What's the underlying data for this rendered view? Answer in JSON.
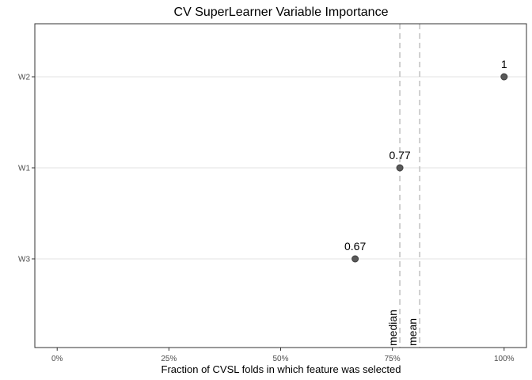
{
  "chart_data": {
    "type": "scatter",
    "title": "CV SuperLearner Variable Importance",
    "xlabel": "Fraction of CVSL folds in which feature was selected",
    "ylabel": "",
    "xlim": [
      -0.05,
      1.05
    ],
    "x_ticks": [
      0,
      0.25,
      0.5,
      0.75,
      1.0
    ],
    "x_tick_labels": [
      "0%",
      "25%",
      "50%",
      "75%",
      "100%"
    ],
    "categories": [
      "W2",
      "W1",
      "W3"
    ],
    "points": [
      {
        "category": "W2",
        "x": 1.0,
        "label": "1"
      },
      {
        "category": "W1",
        "x": 0.7667,
        "label": "0.77"
      },
      {
        "category": "W3",
        "x": 0.6667,
        "label": "0.67"
      }
    ],
    "reference_lines": [
      {
        "name": "median",
        "x": 0.7667
      },
      {
        "name": "mean",
        "x": 0.8111
      }
    ],
    "grid": true,
    "point_color": "#595959",
    "ref_line_color": "#bfbfbf"
  }
}
